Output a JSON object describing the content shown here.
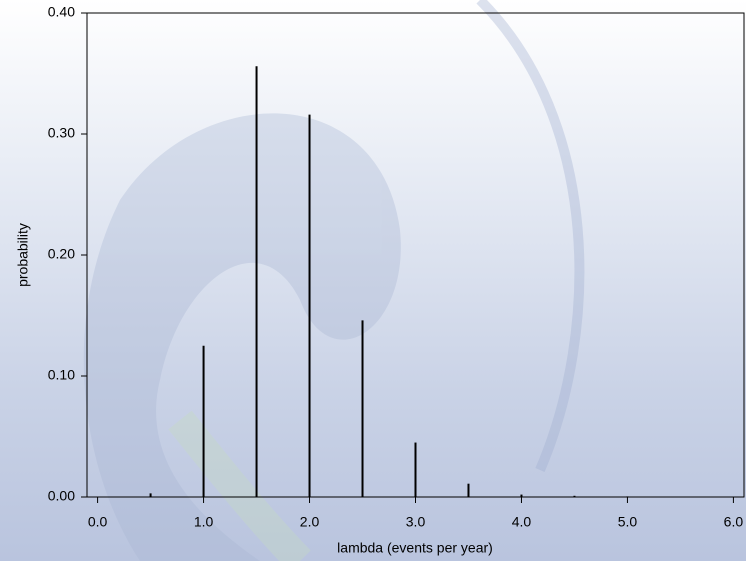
{
  "chart_data": {
    "type": "spike",
    "x_label": "lambda (events per year)",
    "y_label": "probability",
    "x": [
      0.5,
      1.0,
      1.5,
      2.0,
      2.5,
      3.0,
      3.5,
      4.0,
      4.5,
      5.0,
      5.5
    ],
    "values": [
      0.003,
      0.125,
      0.356,
      0.316,
      0.146,
      0.045,
      0.011,
      0.002,
      0.001,
      0.0005,
      0.0002
    ],
    "color": "#000000",
    "xlim": [
      -0.1,
      6.1
    ],
    "ylim": [
      0,
      0.4
    ],
    "xticks": [
      {
        "value": 0,
        "label": "0.0"
      },
      {
        "value": 1,
        "label": "1.0"
      },
      {
        "value": 2,
        "label": "2.0"
      },
      {
        "value": 3,
        "label": "3.0"
      },
      {
        "value": 4,
        "label": "4.0"
      },
      {
        "value": 5,
        "label": "5.0"
      },
      {
        "value": 6,
        "label": "6.0"
      }
    ],
    "yticks": [
      {
        "value": 0,
        "label": "0.00"
      },
      {
        "value": 0.1,
        "label": "0.10"
      },
      {
        "value": 0.2,
        "label": "0.20"
      },
      {
        "value": 0.3,
        "label": "0.30"
      },
      {
        "value": 0.4,
        "label": "0.40"
      }
    ]
  }
}
